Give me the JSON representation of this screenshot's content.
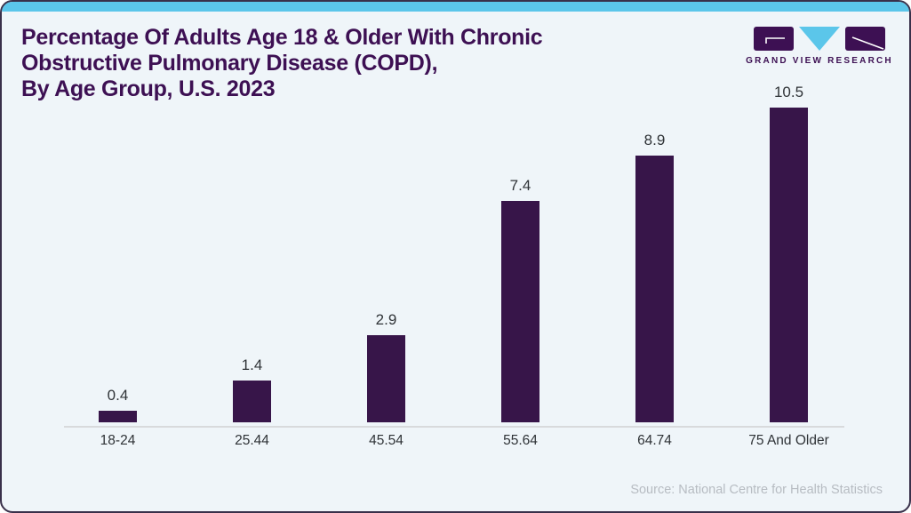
{
  "card": {
    "title": "Percentage Of Adults Age 18 & Older With Chronic\nObstructive Pulmonary Disease (COPD),\nBy Age Group, U.S. 2023",
    "source": "Source: National Centre for Health Statistics",
    "background_color": "#eff5f9",
    "accent_color": "#5bc6ea",
    "title_color": "#3d1053"
  },
  "logo": {
    "text": "GRAND VIEW RESEARCH",
    "purple": "#3d1053",
    "blue": "#5bc6ea"
  },
  "chart_data": {
    "type": "bar",
    "title": "Percentage Of Adults Age 18 & Older With Chronic Obstructive Pulmonary Disease (COPD), By Age Group, U.S. 2023",
    "categories": [
      "18-24",
      "25.44",
      "45.54",
      "55.64",
      "64.74",
      "75 And Older"
    ],
    "values": [
      0.4,
      1.4,
      2.9,
      7.4,
      8.9,
      10.5
    ],
    "value_labels": [
      "0.4",
      "1.4",
      "2.9",
      "7.4",
      "8.9",
      "10.5"
    ],
    "xlabel": "",
    "ylabel": "",
    "ylim": [
      0,
      10.5
    ],
    "bar_color": "#371549",
    "grid": false,
    "legend": false,
    "value_labels_shown": true,
    "y_axis_shown": false
  }
}
